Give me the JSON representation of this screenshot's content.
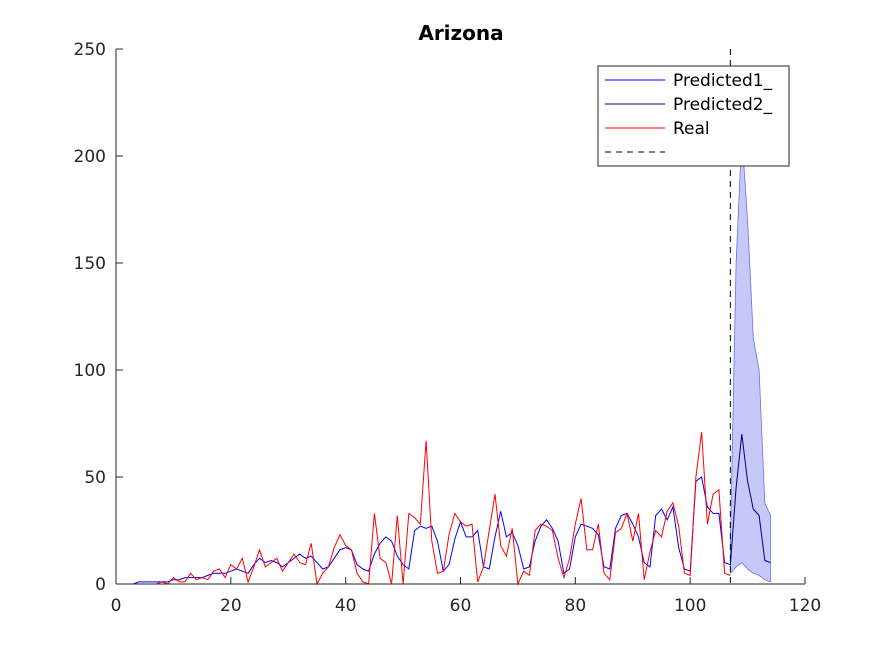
{
  "chart_data": {
    "type": "line",
    "title": "Arizona",
    "xlabel": "",
    "ylabel": "",
    "xlim": [
      0,
      120
    ],
    "ylim": [
      0,
      250
    ],
    "x_ticks": [
      0,
      20,
      40,
      60,
      80,
      100,
      120
    ],
    "y_ticks": [
      0,
      50,
      100,
      150,
      200,
      250
    ],
    "grid": false,
    "legend_position": "top-right",
    "colors": {
      "predicted1": "#0000ff",
      "predicted2": "#000080",
      "real": "#ff0000",
      "band": "#c6c8f8",
      "band_edge": "#6b6fe8",
      "divider": "#000000",
      "axis": "#262626"
    },
    "divider_x": 107,
    "series": [
      {
        "name": "Predicted1_",
        "x": [
          0,
          1,
          2,
          3,
          4,
          5,
          6,
          7,
          8,
          9,
          10,
          11,
          12,
          13,
          14,
          15,
          16,
          17,
          18,
          19,
          20,
          21,
          22,
          23,
          24,
          25,
          26,
          27,
          28,
          29,
          30,
          31,
          32,
          33,
          34,
          35,
          36,
          37,
          38,
          39,
          40,
          41,
          42,
          43,
          44,
          45,
          46,
          47,
          48,
          49,
          50,
          51,
          52,
          53,
          54,
          55,
          56,
          57,
          58,
          59,
          60,
          61,
          62,
          63,
          64,
          65,
          66,
          67,
          68,
          69,
          70,
          71,
          72,
          73,
          74,
          75,
          76,
          77,
          78,
          79,
          80,
          81,
          82,
          83,
          84,
          85,
          86,
          87,
          88,
          89,
          90,
          91,
          92,
          93,
          94,
          95,
          96,
          97,
          98,
          99,
          100,
          101,
          102,
          103,
          104,
          105,
          106,
          107
        ],
        "values": [
          0,
          0,
          0,
          0,
          1,
          1,
          1,
          1,
          1,
          1,
          2,
          2,
          3,
          3,
          3,
          3,
          4,
          5,
          5,
          5,
          6,
          7,
          6,
          5,
          9,
          12,
          10,
          11,
          10,
          8,
          10,
          12,
          14,
          12,
          13,
          10,
          7,
          8,
          12,
          16,
          17,
          16,
          9,
          7,
          6,
          14,
          19,
          22,
          20,
          13,
          9,
          7,
          25,
          27,
          26,
          27,
          20,
          6,
          9,
          21,
          29,
          22,
          22,
          25,
          8,
          7,
          22,
          34,
          22,
          24,
          18,
          7,
          8,
          20,
          27,
          30,
          26,
          20,
          5,
          7,
          22,
          28,
          27,
          26,
          23,
          8,
          7,
          26,
          32,
          33,
          28,
          22,
          10,
          8,
          32,
          35,
          30,
          36,
          17,
          7,
          6,
          48,
          50,
          36,
          33,
          33,
          10,
          9
        ]
      },
      {
        "name": "Predicted2_",
        "x": [
          107,
          108,
          109,
          110,
          111,
          112,
          113,
          114
        ],
        "values": [
          9,
          45,
          70,
          48,
          35,
          32,
          11,
          10
        ],
        "lower": [
          5,
          8,
          10,
          7,
          5,
          4,
          2,
          1
        ],
        "upper": [
          20,
          150,
          210,
          170,
          115,
          100,
          38,
          32
        ]
      },
      {
        "name": "Real",
        "x": [
          0,
          1,
          2,
          3,
          4,
          5,
          6,
          7,
          8,
          9,
          10,
          11,
          12,
          13,
          14,
          15,
          16,
          17,
          18,
          19,
          20,
          21,
          22,
          23,
          24,
          25,
          26,
          27,
          28,
          29,
          30,
          31,
          32,
          33,
          34,
          35,
          36,
          37,
          38,
          39,
          40,
          41,
          42,
          43,
          44,
          45,
          46,
          47,
          48,
          49,
          50,
          51,
          52,
          53,
          54,
          55,
          56,
          57,
          58,
          59,
          60,
          61,
          62,
          63,
          64,
          65,
          66,
          67,
          68,
          69,
          70,
          71,
          72,
          73,
          74,
          75,
          76,
          77,
          78,
          79,
          80,
          81,
          82,
          83,
          84,
          85,
          86,
          87,
          88,
          89,
          90,
          91,
          92,
          93,
          94,
          95,
          96,
          97,
          98,
          99,
          100,
          101,
          102,
          103,
          104,
          105,
          106,
          107
        ],
        "values": [
          0,
          0,
          0,
          0,
          0,
          0,
          0,
          0,
          1,
          0,
          3,
          1,
          1,
          5,
          2,
          3,
          2,
          6,
          7,
          3,
          9,
          7,
          12,
          1,
          8,
          16,
          8,
          10,
          12,
          6,
          10,
          14,
          10,
          9,
          19,
          0,
          5,
          8,
          17,
          23,
          18,
          16,
          5,
          1,
          0,
          33,
          12,
          10,
          0,
          32,
          0,
          33,
          31,
          28,
          67,
          20,
          5,
          6,
          23,
          33,
          29,
          27,
          28,
          1,
          8,
          25,
          42,
          18,
          13,
          26,
          0,
          6,
          4,
          25,
          28,
          27,
          25,
          12,
          3,
          12,
          28,
          40,
          16,
          16,
          28,
          5,
          2,
          24,
          26,
          33,
          20,
          33,
          2,
          15,
          25,
          22,
          34,
          38,
          27,
          5,
          4,
          50,
          71,
          28,
          42,
          44,
          5,
          4
        ]
      },
      {
        "name": "",
        "style": "dashed"
      }
    ]
  }
}
